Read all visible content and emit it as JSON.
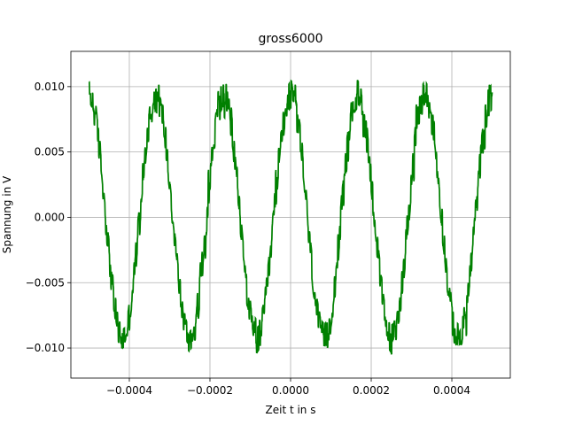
{
  "chart_data": {
    "type": "line",
    "title": "gross6000",
    "xlabel": "Zeit t in s",
    "ylabel": "Spannung in V",
    "xlim": [
      -0.000545,
      0.000545
    ],
    "ylim": [
      -0.0123,
      0.0127
    ],
    "grid": true,
    "x_ticks": [
      {
        "value": -0.0004,
        "label": "−0.0004"
      },
      {
        "value": -0.0002,
        "label": "−0.0002"
      },
      {
        "value": 0.0,
        "label": "0.0000"
      },
      {
        "value": 0.0002,
        "label": "0.0002"
      },
      {
        "value": 0.0004,
        "label": "0.0004"
      }
    ],
    "y_ticks": [
      {
        "value": -0.01,
        "label": "−0.010"
      },
      {
        "value": -0.005,
        "label": "−0.005"
      },
      {
        "value": 0.0,
        "label": "0.000"
      },
      {
        "value": 0.005,
        "label": "0.005"
      },
      {
        "value": 0.01,
        "label": "0.010"
      }
    ],
    "series": [
      {
        "color": "#008000",
        "x_start": -0.0005,
        "x_end": 0.0005,
        "amplitude": 0.0093,
        "frequency_hz": 6000,
        "phase_rad": 1.5708,
        "noise_amplitude": 0.0012,
        "sample_count": 1400
      }
    ]
  }
}
